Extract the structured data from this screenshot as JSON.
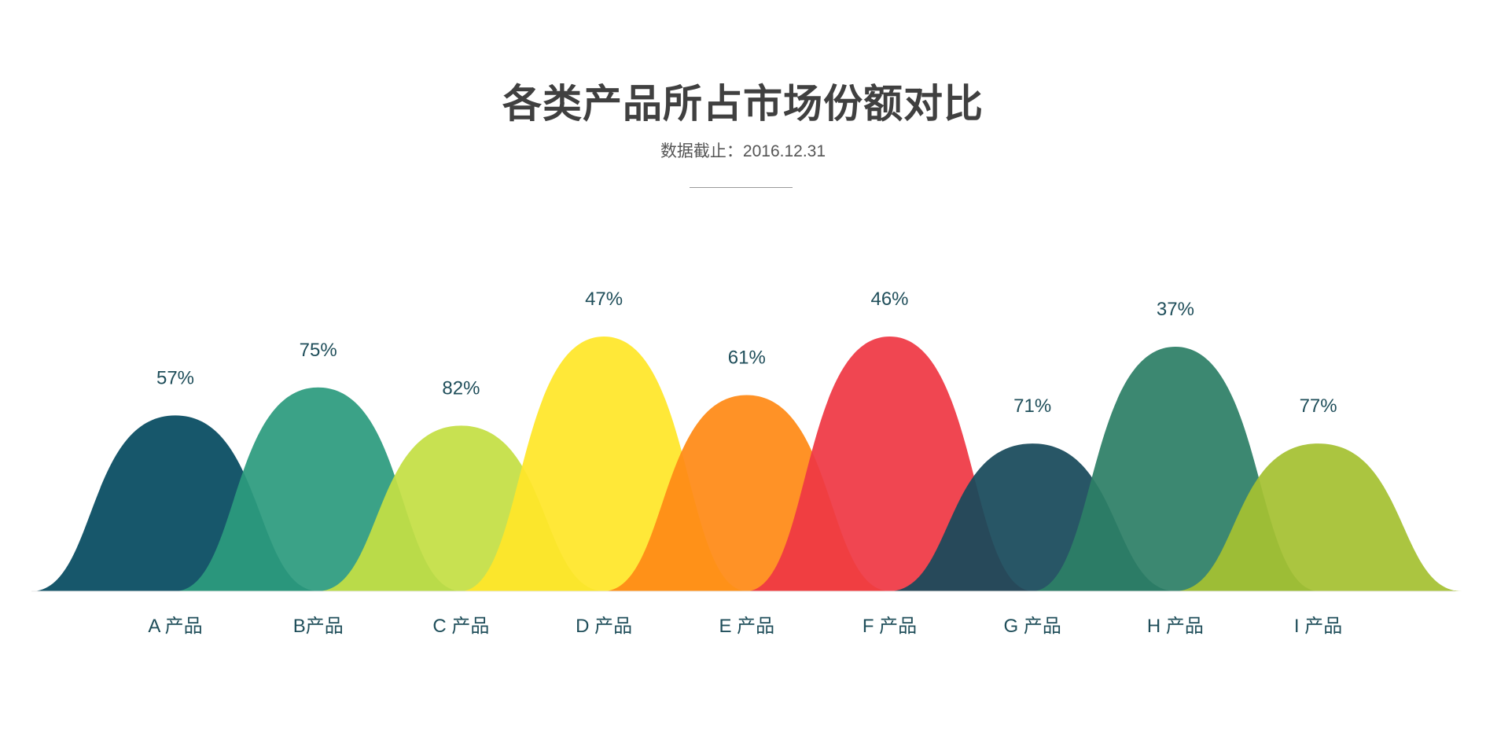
{
  "header": {
    "title": "各类产品所占市场份额对比",
    "subtitle": "数据截止：2016.12.31"
  },
  "chart_data": {
    "type": "area",
    "title": "各类产品所占市场份额对比",
    "subtitle": "数据截止：2016.12.31",
    "xlabel": "",
    "ylabel": "",
    "grid": false,
    "legend": "none",
    "categories": [
      "A 产品",
      "B产品",
      "C 产品",
      "D 产品",
      "E 产品",
      "F 产品",
      "G 产品",
      "H 产品",
      "I 产品"
    ],
    "values": [
      57,
      75,
      82,
      47,
      61,
      46,
      71,
      37,
      77
    ],
    "value_labels": [
      "57%",
      "75%",
      "82%",
      "47%",
      "61%",
      "46%",
      "71%",
      "37%",
      "77%"
    ],
    "relative_heights": [
      0.69,
      0.8,
      0.65,
      1.0,
      0.77,
      1.0,
      0.58,
      0.96,
      0.58
    ],
    "colors": [
      "#054a60",
      "#2c9b7e",
      "#c4df44",
      "#ffe629",
      "#ff8a16",
      "#ef3844",
      "#18495a",
      "#2d7f66",
      "#a5c132"
    ]
  }
}
